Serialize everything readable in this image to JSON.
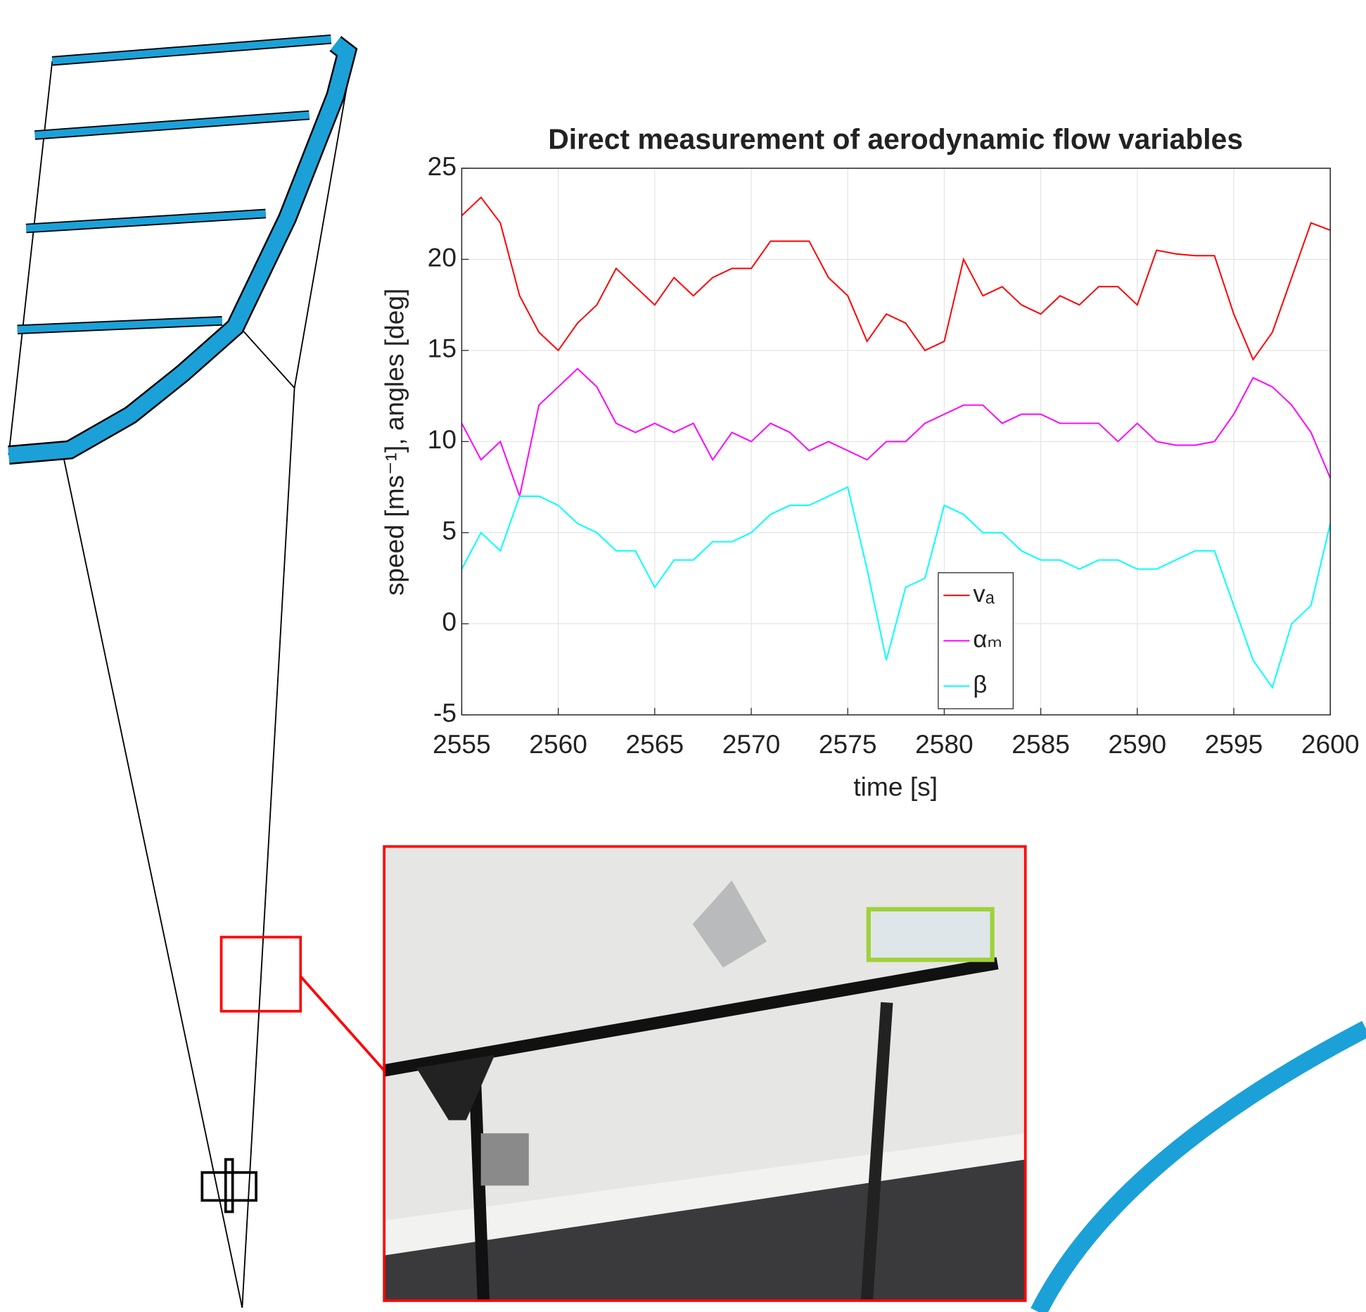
{
  "chart_data": {
    "type": "line",
    "title": "Direct measurement of aerodynamic flow variables",
    "x_label": "time [s]",
    "y_label": "speed [ms⁻¹], angles [deg]",
    "x": [
      2555,
      2556,
      2557,
      2558,
      2559,
      2560,
      2561,
      2562,
      2563,
      2564,
      2565,
      2566,
      2567,
      2568,
      2569,
      2570,
      2571,
      2572,
      2573,
      2574,
      2575,
      2576,
      2577,
      2578,
      2579,
      2580,
      2581,
      2582,
      2583,
      2584,
      2585,
      2586,
      2587,
      2588,
      2589,
      2590,
      2591,
      2592,
      2593,
      2594,
      2595,
      2596,
      2597,
      2598,
      2599,
      2600
    ],
    "series": [
      {
        "name": "vₐ",
        "color": "#ff0000",
        "values": [
          22.4,
          23.4,
          22,
          18,
          16,
          15,
          16.5,
          17.5,
          19.5,
          18.5,
          17.5,
          19,
          18,
          19,
          19.5,
          19.5,
          21,
          21,
          21,
          19,
          18,
          15.5,
          17,
          16.5,
          15,
          15.5,
          20,
          18,
          18.5,
          17.5,
          17,
          18,
          17.5,
          18.5,
          18.5,
          17.5,
          20.5,
          20.3,
          20.2,
          20.2,
          17,
          14.5,
          16,
          19,
          22,
          21.6
        ]
      },
      {
        "name": "αₘ",
        "color": "#ff00ff",
        "values": [
          11,
          9,
          10,
          7,
          12,
          13,
          14,
          13,
          11,
          10.5,
          11,
          10.5,
          11,
          9,
          10.5,
          10,
          11,
          10.5,
          9.5,
          10,
          9.5,
          9,
          10,
          10,
          11,
          11.5,
          12,
          12,
          11,
          11.5,
          11.5,
          11,
          11,
          11,
          10,
          11,
          10,
          9.8,
          9.8,
          10,
          11.5,
          13.5,
          13,
          12,
          10.5,
          8
        ]
      },
      {
        "name": "β",
        "color": "#00ffff",
        "values": [
          3,
          5,
          4,
          7,
          7,
          6.5,
          5.5,
          5,
          4,
          4,
          2,
          3.5,
          3.5,
          4.5,
          4.5,
          5,
          6,
          6.5,
          6.5,
          7,
          7.5,
          3,
          -2,
          2,
          2.5,
          6.5,
          6,
          5,
          5,
          4,
          3.5,
          3.5,
          3,
          3.5,
          3.5,
          3,
          3,
          3.5,
          4,
          4,
          1,
          -2,
          -3.5,
          0,
          1,
          5.5
        ]
      }
    ],
    "xlim": [
      2555,
      2600
    ],
    "xticks": [
      2555,
      2560,
      2565,
      2570,
      2575,
      2580,
      2585,
      2590,
      2595,
      2600
    ],
    "ylim": [
      -5,
      25
    ],
    "yticks": [
      -5,
      0,
      5,
      10,
      15,
      20,
      25
    ],
    "grid": true
  }
}
